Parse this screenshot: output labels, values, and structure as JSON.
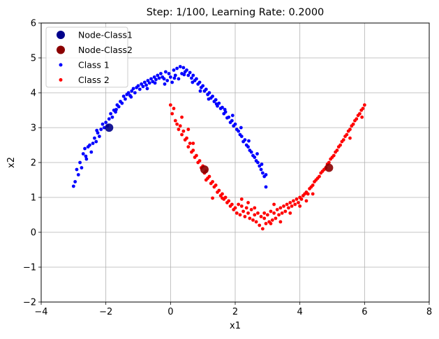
{
  "chart_data": {
    "type": "scatter",
    "title": "Step: 1/100, Learning Rate: 0.2000",
    "xlabel": "x1",
    "ylabel": "x2",
    "xlim": [
      -4,
      8
    ],
    "ylim": [
      -2,
      6
    ],
    "xticks": [
      -4,
      -2,
      0,
      2,
      4,
      6,
      8
    ],
    "yticks": [
      -2,
      -1,
      0,
      1,
      2,
      3,
      4,
      5,
      6
    ],
    "xtick_labels": [
      "−4",
      "−2",
      "0",
      "2",
      "4",
      "6",
      "8"
    ],
    "ytick_labels": [
      "−2",
      "−1",
      "0",
      "1",
      "2",
      "3",
      "4",
      "5",
      "6"
    ],
    "grid": true,
    "legend_position": "top-left",
    "series": [
      {
        "name": "Class 1",
        "color": "#0000ff",
        "marker": "small-dot",
        "points": [
          [
            -3.0,
            1.32
          ],
          [
            -2.95,
            1.45
          ],
          [
            -2.9,
            1.8
          ],
          [
            -2.85,
            1.65
          ],
          [
            -2.8,
            2.0
          ],
          [
            -2.75,
            1.85
          ],
          [
            -2.7,
            2.25
          ],
          [
            -2.65,
            2.4
          ],
          [
            -2.6,
            2.1
          ],
          [
            -2.55,
            2.45
          ],
          [
            -2.5,
            2.5
          ],
          [
            -2.45,
            2.3
          ],
          [
            -2.4,
            2.55
          ],
          [
            -2.35,
            2.7
          ],
          [
            -2.3,
            2.6
          ],
          [
            -2.25,
            2.85
          ],
          [
            -2.2,
            2.75
          ],
          [
            -2.15,
            2.95
          ],
          [
            -2.1,
            3.1
          ],
          [
            -2.05,
            3.0
          ],
          [
            -2.0,
            3.15
          ],
          [
            -1.95,
            3.05
          ],
          [
            -1.9,
            3.25
          ],
          [
            -1.85,
            3.4
          ],
          [
            -1.8,
            3.3
          ],
          [
            -1.75,
            3.5
          ],
          [
            -1.7,
            3.45
          ],
          [
            -1.65,
            3.65
          ],
          [
            -1.6,
            3.6
          ],
          [
            -1.55,
            3.75
          ],
          [
            -1.5,
            3.7
          ],
          [
            -1.45,
            3.9
          ],
          [
            -1.4,
            3.82
          ],
          [
            -1.35,
            3.95
          ],
          [
            -1.3,
            4.0
          ],
          [
            -1.25,
            3.92
          ],
          [
            -1.2,
            4.05
          ],
          [
            -1.15,
            4.12
          ],
          [
            -1.1,
            4.0
          ],
          [
            -1.05,
            4.15
          ],
          [
            -1.0,
            4.2
          ],
          [
            -0.95,
            4.1
          ],
          [
            -0.9,
            4.25
          ],
          [
            -0.85,
            4.18
          ],
          [
            -0.8,
            4.3
          ],
          [
            -0.75,
            4.22
          ],
          [
            -0.7,
            4.35
          ],
          [
            -0.65,
            4.28
          ],
          [
            -0.6,
            4.4
          ],
          [
            -0.55,
            4.32
          ],
          [
            -0.5,
            4.45
          ],
          [
            -0.45,
            4.38
          ],
          [
            -0.4,
            4.5
          ],
          [
            -0.35,
            4.42
          ],
          [
            -0.3,
            4.55
          ],
          [
            -0.25,
            4.45
          ],
          [
            -0.2,
            4.4
          ],
          [
            -0.15,
            4.6
          ],
          [
            -0.1,
            4.35
          ],
          [
            -0.05,
            4.55
          ],
          [
            0.0,
            4.45
          ],
          [
            0.05,
            4.3
          ],
          [
            0.1,
            4.65
          ],
          [
            0.15,
            4.5
          ],
          [
            0.2,
            4.7
          ],
          [
            0.25,
            4.4
          ],
          [
            0.3,
            4.75
          ],
          [
            0.35,
            4.55
          ],
          [
            0.4,
            4.72
          ],
          [
            0.45,
            4.6
          ],
          [
            0.5,
            4.65
          ],
          [
            0.55,
            4.5
          ],
          [
            0.6,
            4.58
          ],
          [
            0.65,
            4.42
          ],
          [
            0.7,
            4.5
          ],
          [
            0.75,
            4.35
          ],
          [
            0.8,
            4.4
          ],
          [
            0.85,
            4.25
          ],
          [
            0.9,
            4.3
          ],
          [
            0.95,
            4.15
          ],
          [
            1.0,
            4.2
          ],
          [
            1.05,
            4.05
          ],
          [
            1.1,
            4.1
          ],
          [
            1.15,
            3.95
          ],
          [
            1.2,
            4.0
          ],
          [
            1.25,
            3.85
          ],
          [
            1.3,
            3.9
          ],
          [
            1.35,
            3.75
          ],
          [
            1.4,
            3.8
          ],
          [
            1.45,
            3.62
          ],
          [
            1.5,
            3.7
          ],
          [
            1.55,
            3.55
          ],
          [
            1.6,
            3.58
          ],
          [
            1.65,
            3.4
          ],
          [
            1.7,
            3.45
          ],
          [
            1.75,
            3.28
          ],
          [
            1.8,
            3.3
          ],
          [
            1.85,
            3.15
          ],
          [
            1.9,
            3.2
          ],
          [
            1.95,
            3.05
          ],
          [
            2.0,
            3.1
          ],
          [
            2.05,
            2.95
          ],
          [
            2.1,
            2.9
          ],
          [
            2.15,
            2.8
          ],
          [
            2.2,
            2.75
          ],
          [
            2.25,
            2.6
          ],
          [
            2.3,
            2.65
          ],
          [
            2.35,
            2.5
          ],
          [
            2.4,
            2.45
          ],
          [
            2.45,
            2.35
          ],
          [
            2.5,
            2.3
          ],
          [
            2.55,
            2.2
          ],
          [
            2.6,
            2.15
          ],
          [
            2.65,
            2.05
          ],
          [
            2.7,
            2.0
          ],
          [
            2.75,
            1.9
          ],
          [
            2.8,
            1.8
          ],
          [
            2.85,
            1.7
          ],
          [
            2.9,
            1.6
          ],
          [
            2.95,
            1.65
          ],
          [
            -2.62,
            2.18
          ],
          [
            -2.28,
            2.92
          ],
          [
            -1.68,
            3.52
          ],
          [
            -1.22,
            3.88
          ],
          [
            -0.72,
            4.12
          ],
          [
            -0.48,
            4.28
          ],
          [
            -0.18,
            4.25
          ],
          [
            0.12,
            4.42
          ],
          [
            0.42,
            4.52
          ],
          [
            0.68,
            4.3
          ],
          [
            0.92,
            4.05
          ],
          [
            1.18,
            3.82
          ],
          [
            1.42,
            3.68
          ],
          [
            1.68,
            3.52
          ],
          [
            1.92,
            3.35
          ],
          [
            2.18,
            3.0
          ],
          [
            2.42,
            2.62
          ],
          [
            2.68,
            2.25
          ],
          [
            2.82,
            1.95
          ],
          [
            2.95,
            1.3
          ]
        ]
      },
      {
        "name": "Class 2",
        "color": "#ff0000",
        "marker": "small-dot",
        "points": [
          [
            0.0,
            3.65
          ],
          [
            0.05,
            3.4
          ],
          [
            0.1,
            3.55
          ],
          [
            0.15,
            3.2
          ],
          [
            0.2,
            3.1
          ],
          [
            0.25,
            2.95
          ],
          [
            0.3,
            3.05
          ],
          [
            0.35,
            2.8
          ],
          [
            0.4,
            2.9
          ],
          [
            0.45,
            2.65
          ],
          [
            0.5,
            2.7
          ],
          [
            0.55,
            2.45
          ],
          [
            0.6,
            2.55
          ],
          [
            0.65,
            2.3
          ],
          [
            0.7,
            2.35
          ],
          [
            0.75,
            2.15
          ],
          [
            0.8,
            2.2
          ],
          [
            0.85,
            2.0
          ],
          [
            0.9,
            2.05
          ],
          [
            0.95,
            1.85
          ],
          [
            1.0,
            1.9
          ],
          [
            1.05,
            1.7
          ],
          [
            1.1,
            1.75
          ],
          [
            1.15,
            1.55
          ],
          [
            1.2,
            1.6
          ],
          [
            1.25,
            1.4
          ],
          [
            1.3,
            1.45
          ],
          [
            1.35,
            1.3
          ],
          [
            1.4,
            1.35
          ],
          [
            1.45,
            1.15
          ],
          [
            1.5,
            1.2
          ],
          [
            1.55,
            1.05
          ],
          [
            1.6,
            1.1
          ],
          [
            1.65,
            0.95
          ],
          [
            1.7,
            1.0
          ],
          [
            1.75,
            0.85
          ],
          [
            1.8,
            0.9
          ],
          [
            1.85,
            0.75
          ],
          [
            1.9,
            0.8
          ],
          [
            1.95,
            0.65
          ],
          [
            2.0,
            0.7
          ],
          [
            2.05,
            0.55
          ],
          [
            2.1,
            0.8
          ],
          [
            2.15,
            0.5
          ],
          [
            2.2,
            0.75
          ],
          [
            2.25,
            0.6
          ],
          [
            2.3,
            0.45
          ],
          [
            2.35,
            0.7
          ],
          [
            2.4,
            0.55
          ],
          [
            2.45,
            0.4
          ],
          [
            2.5,
            0.65
          ],
          [
            2.55,
            0.35
          ],
          [
            2.6,
            0.5
          ],
          [
            2.65,
            0.3
          ],
          [
            2.7,
            0.55
          ],
          [
            2.75,
            0.2
          ],
          [
            2.8,
            0.45
          ],
          [
            2.85,
            0.1
          ],
          [
            2.9,
            0.4
          ],
          [
            2.95,
            0.25
          ],
          [
            3.0,
            0.5
          ],
          [
            3.05,
            0.3
          ],
          [
            3.1,
            0.6
          ],
          [
            3.15,
            0.35
          ],
          [
            3.2,
            0.55
          ],
          [
            3.25,
            0.4
          ],
          [
            3.3,
            0.65
          ],
          [
            3.35,
            0.5
          ],
          [
            3.4,
            0.7
          ],
          [
            3.45,
            0.55
          ],
          [
            3.5,
            0.75
          ],
          [
            3.55,
            0.6
          ],
          [
            3.6,
            0.8
          ],
          [
            3.65,
            0.7
          ],
          [
            3.7,
            0.85
          ],
          [
            3.75,
            0.75
          ],
          [
            3.8,
            0.9
          ],
          [
            3.85,
            0.8
          ],
          [
            3.9,
            0.95
          ],
          [
            3.95,
            0.85
          ],
          [
            4.0,
            1.0
          ],
          [
            4.05,
            0.95
          ],
          [
            4.1,
            1.05
          ],
          [
            4.15,
            1.1
          ],
          [
            4.2,
            1.15
          ],
          [
            4.25,
            1.1
          ],
          [
            4.3,
            1.25
          ],
          [
            4.35,
            1.3
          ],
          [
            4.4,
            1.35
          ],
          [
            4.45,
            1.45
          ],
          [
            4.5,
            1.5
          ],
          [
            4.55,
            1.55
          ],
          [
            4.6,
            1.6
          ],
          [
            4.65,
            1.7
          ],
          [
            4.7,
            1.75
          ],
          [
            4.75,
            1.8
          ],
          [
            4.8,
            1.85
          ],
          [
            4.85,
            1.95
          ],
          [
            4.9,
            2.0
          ],
          [
            4.95,
            2.1
          ],
          [
            5.0,
            2.15
          ],
          [
            5.05,
            2.2
          ],
          [
            5.1,
            2.3
          ],
          [
            5.15,
            2.35
          ],
          [
            5.2,
            2.45
          ],
          [
            5.25,
            2.5
          ],
          [
            5.3,
            2.6
          ],
          [
            5.35,
            2.65
          ],
          [
            5.4,
            2.75
          ],
          [
            5.45,
            2.8
          ],
          [
            5.5,
            2.9
          ],
          [
            5.55,
            2.95
          ],
          [
            5.6,
            3.05
          ],
          [
            5.65,
            3.1
          ],
          [
            5.7,
            3.2
          ],
          [
            5.75,
            3.25
          ],
          [
            5.8,
            3.35
          ],
          [
            5.85,
            3.4
          ],
          [
            5.9,
            3.5
          ],
          [
            5.95,
            3.55
          ],
          [
            1.3,
            0.98
          ],
          [
            1.6,
            0.98
          ],
          [
            2.2,
            0.95
          ],
          [
            2.4,
            0.85
          ],
          [
            2.6,
            0.7
          ],
          [
            3.1,
            0.25
          ],
          [
            3.4,
            0.3
          ],
          [
            3.7,
            0.55
          ],
          [
            4.0,
            0.75
          ],
          [
            4.2,
            0.9
          ],
          [
            6.0,
            3.65
          ],
          [
            5.92,
            3.3
          ],
          [
            5.55,
            2.7
          ],
          [
            4.4,
            1.1
          ],
          [
            3.2,
            0.8
          ],
          [
            2.9,
            0.55
          ],
          [
            0.55,
            2.95
          ],
          [
            0.7,
            2.55
          ],
          [
            0.35,
            3.3
          ],
          [
            1.1,
            1.5
          ]
        ]
      },
      {
        "name": "Node-Class1",
        "color": "#00008b",
        "marker": "large-dot",
        "points": [
          [
            -1.9,
            3.0
          ]
        ]
      },
      {
        "name": "Node-Class2",
        "color": "#8b0000",
        "marker": "large-dot",
        "points": [
          [
            1.05,
            1.8
          ],
          [
            4.9,
            1.85
          ]
        ]
      }
    ],
    "legend_entries": [
      {
        "label": "Node-Class1",
        "color": "#00008b",
        "marker": "large"
      },
      {
        "label": "Node-Class2",
        "color": "#8b0000",
        "marker": "large"
      },
      {
        "label": "Class 1",
        "color": "#0000ff",
        "marker": "small"
      },
      {
        "label": "Class 2",
        "color": "#ff0000",
        "marker": "small"
      }
    ]
  }
}
